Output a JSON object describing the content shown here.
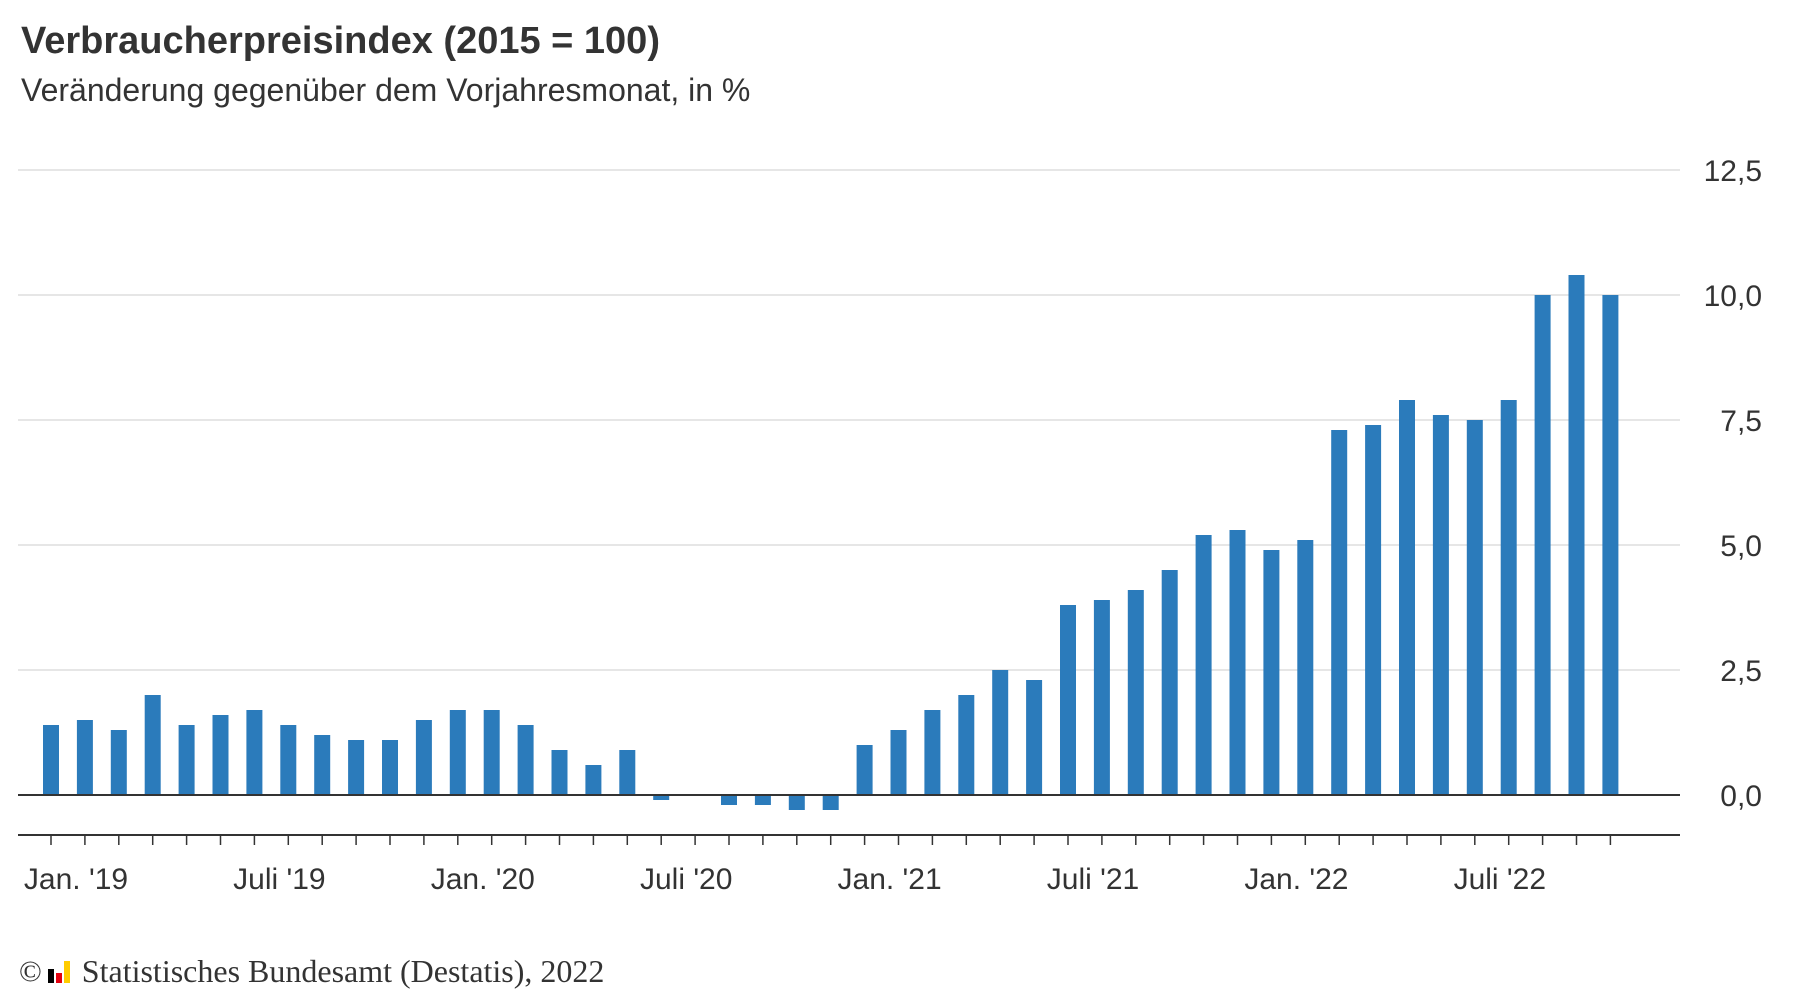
{
  "title": "Verbraucherpreisindex (2015 = 100)",
  "subtitle": "Veränderung gegenüber dem Vorjahresmonat, in %",
  "footer": {
    "copyright_symbol": "©",
    "source": "Statistisches Bundesamt (Destatis), 2022",
    "logo_icon": "destatis-logo-icon",
    "logo_colors": [
      "#000000",
      "#e3000f",
      "#ffcc00"
    ]
  },
  "colors": {
    "bar": "#2b7bbb",
    "grid": "#cccccc",
    "axis": "#333333",
    "text": "#333333"
  },
  "chart_data": {
    "type": "bar",
    "title": "Verbraucherpreisindex (2015 = 100)",
    "subtitle": "Veränderung gegenüber dem Vorjahresmonat, in %",
    "xlabel": "",
    "ylabel": "",
    "ylim": [
      -0.8,
      12.5
    ],
    "y_ticks": [
      0,
      2.5,
      5,
      7.5,
      10,
      12.5
    ],
    "y_tick_labels": [
      "0,0",
      "2,5",
      "5,0",
      "7,5",
      "10,0",
      "12,5"
    ],
    "y_axis_position": "right",
    "grid": true,
    "legend": "none",
    "categories": [
      "2019-01",
      "2019-02",
      "2019-03",
      "2019-04",
      "2019-05",
      "2019-06",
      "2019-07",
      "2019-08",
      "2019-09",
      "2019-10",
      "2019-11",
      "2019-12",
      "2020-01",
      "2020-02",
      "2020-03",
      "2020-04",
      "2020-05",
      "2020-06",
      "2020-07",
      "2020-08",
      "2020-09",
      "2020-10",
      "2020-11",
      "2020-12",
      "2021-01",
      "2021-02",
      "2021-03",
      "2021-04",
      "2021-05",
      "2021-06",
      "2021-07",
      "2021-08",
      "2021-09",
      "2021-10",
      "2021-11",
      "2021-12",
      "2022-01",
      "2022-02",
      "2022-03",
      "2022-04",
      "2022-05",
      "2022-06",
      "2022-07",
      "2022-08",
      "2022-09",
      "2022-10",
      "2022-11"
    ],
    "values": [
      1.4,
      1.5,
      1.3,
      2.0,
      1.4,
      1.6,
      1.7,
      1.4,
      1.2,
      1.1,
      1.1,
      1.5,
      1.7,
      1.7,
      1.4,
      0.9,
      0.6,
      0.9,
      -0.1,
      0.0,
      -0.2,
      -0.2,
      -0.3,
      -0.3,
      1.0,
      1.3,
      1.7,
      2.0,
      2.5,
      2.3,
      3.8,
      3.9,
      4.1,
      4.5,
      5.2,
      5.3,
      4.9,
      5.1,
      7.3,
      7.4,
      7.9,
      7.6,
      7.5,
      7.9,
      10.0,
      10.4,
      10.0
    ],
    "x_tick_labels": [
      {
        "index": 0,
        "label": "Jan. '19"
      },
      {
        "index": 6,
        "label": "Juli '19"
      },
      {
        "index": 12,
        "label": "Jan. '20"
      },
      {
        "index": 18,
        "label": "Juli '20"
      },
      {
        "index": 24,
        "label": "Jan. '21"
      },
      {
        "index": 30,
        "label": "Juli '21"
      },
      {
        "index": 36,
        "label": "Jan. '22"
      },
      {
        "index": 42,
        "label": "Juli '22"
      }
    ]
  }
}
